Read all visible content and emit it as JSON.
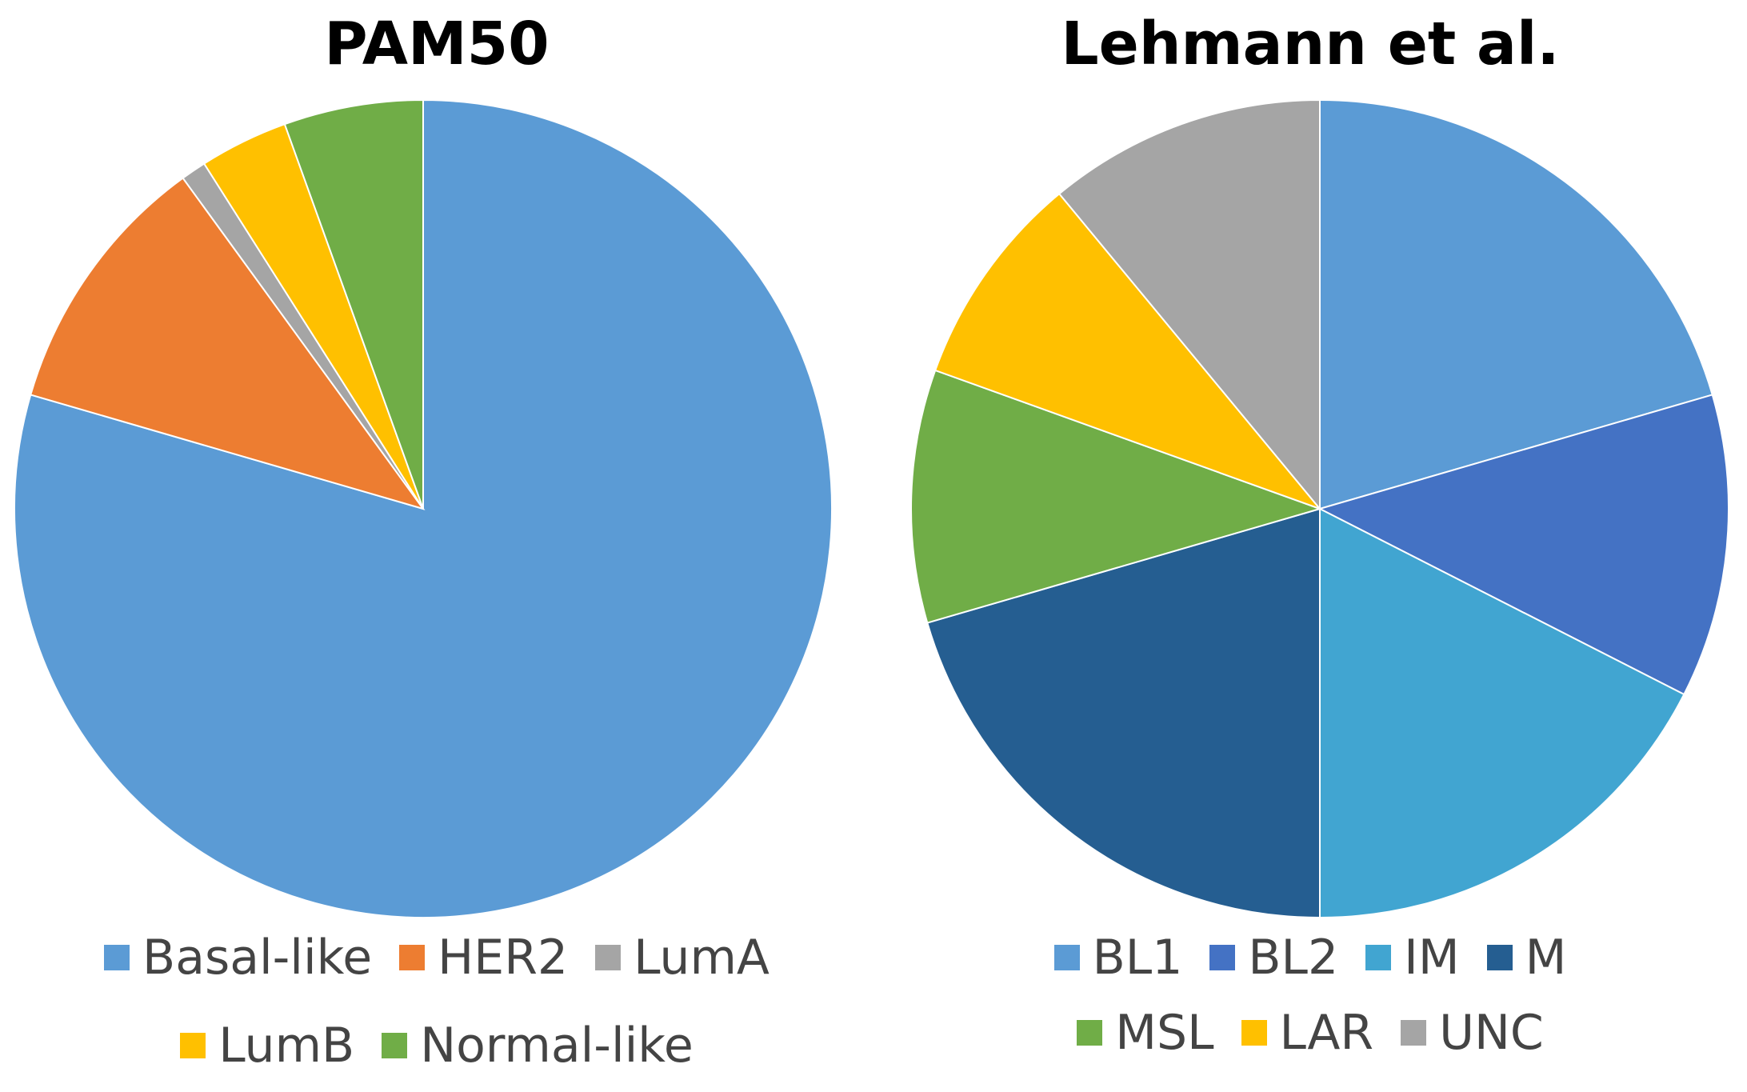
{
  "chart_data": [
    {
      "type": "pie",
      "title": "PAM50",
      "series": [
        {
          "name": "Basal-like",
          "value": 79.5,
          "color": "#5B9BD5"
        },
        {
          "name": "HER2",
          "value": 10.5,
          "color": "#ED7D31"
        },
        {
          "name": "LumA",
          "value": 1.0,
          "color": "#A5A5A5"
        },
        {
          "name": "LumB",
          "value": 3.5,
          "color": "#FFC000"
        },
        {
          "name": "Normal-like",
          "value": 5.5,
          "color": "#70AD47"
        }
      ],
      "direction": "clockwise from top",
      "legend_position": "bottom"
    },
    {
      "type": "pie",
      "title": "Lehmann et al.",
      "series": [
        {
          "name": "BL1",
          "value": 20.5,
          "color": "#5B9BD5"
        },
        {
          "name": "BL2",
          "value": 12.0,
          "color": "#4472C4"
        },
        {
          "name": "IM",
          "value": 17.5,
          "color": "#41A5D1"
        },
        {
          "name": "M",
          "value": 20.5,
          "color": "#255E91"
        },
        {
          "name": "MSL",
          "value": 10.0,
          "color": "#70AD47"
        },
        {
          "name": "LAR",
          "value": 8.5,
          "color": "#FFC000"
        },
        {
          "name": "UNC",
          "value": 11.0,
          "color": "#A5A5A5"
        }
      ],
      "direction": "clockwise from top",
      "legend_position": "bottom"
    }
  ]
}
